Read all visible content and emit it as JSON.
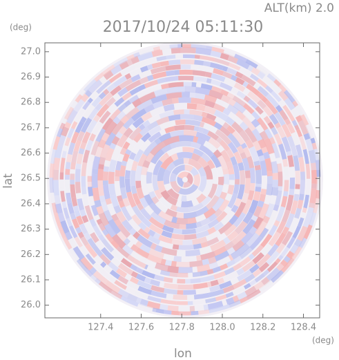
{
  "chart_data": {
    "type": "image",
    "title": "2017/10/24 05:11:30",
    "altitude": "ALT(km) 2.0",
    "x_label": "lon",
    "y_label": "lat",
    "x_unit": "(deg)",
    "y_unit": "(deg)",
    "xlim": [
      127.125,
      128.48
    ],
    "ylim": [
      25.95,
      27.035
    ],
    "xticks": [
      127.4,
      127.6,
      127.8,
      {
        "value": 128,
        "label": "128.0"
      },
      128.2,
      128.4
    ],
    "yticks": [
      {
        "value": 26,
        "label": "26.0"
      },
      26.1,
      26.2,
      26.3,
      26.4,
      26.5,
      26.6,
      26.7,
      26.8,
      26.9,
      {
        "value": 27,
        "label": "27.0"
      }
    ]
  }
}
